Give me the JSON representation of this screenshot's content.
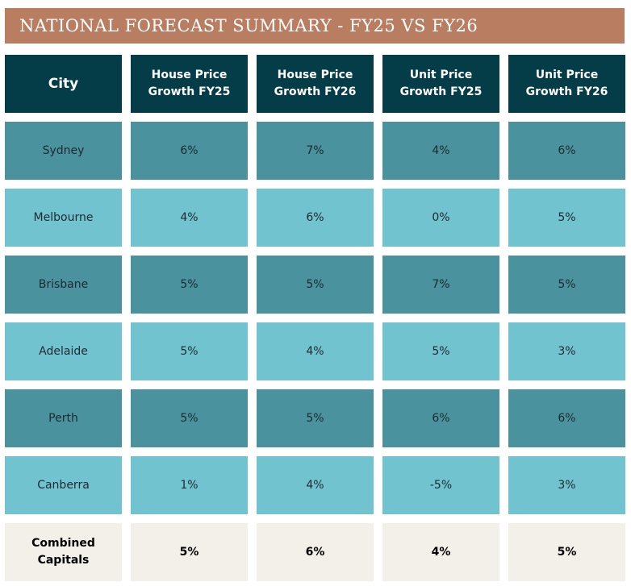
{
  "title": "NATIONAL FORECAST SUMMARY - FY25 VS FY26",
  "colors": {
    "title_bg": "#b97d62",
    "header_bg": "#043d47",
    "row_dark": "#4a929d",
    "row_light": "#72c3d0",
    "footer_bg": "#f3efe9"
  },
  "table": {
    "headers": [
      "City",
      "House Price\nGrowth FY25",
      "House Price\nGrowth FY26",
      "Unit Price\nGrowth FY25",
      "Unit Price\nGrowth FY26"
    ],
    "rows": [
      [
        "Sydney",
        "6%",
        "7%",
        "4%",
        "6%"
      ],
      [
        "Melbourne",
        "4%",
        "6%",
        "0%",
        "5%"
      ],
      [
        "Brisbane",
        "5%",
        "5%",
        "7%",
        "5%"
      ],
      [
        "Adelaide",
        "5%",
        "4%",
        "5%",
        "3%"
      ],
      [
        "Perth",
        "5%",
        "5%",
        "6%",
        "6%"
      ],
      [
        "Canberra",
        "1%",
        "4%",
        "-5%",
        "3%"
      ]
    ],
    "footer": [
      "Combined\nCapitals",
      "5%",
      "6%",
      "4%",
      "5%"
    ]
  }
}
